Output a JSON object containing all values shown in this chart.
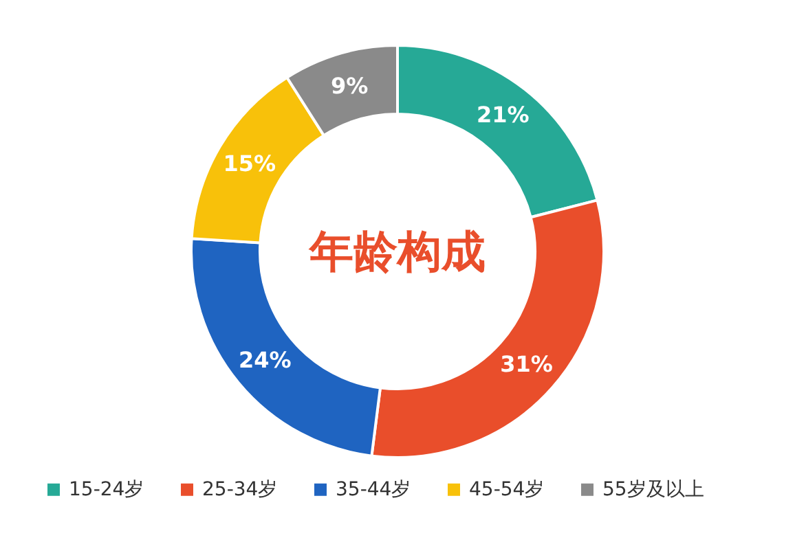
{
  "chart_data": {
    "type": "donut",
    "title": "年龄构成",
    "categories": [
      "15-24岁",
      "25-34岁",
      "35-44岁",
      "45-54岁",
      "55岁及以上"
    ],
    "values": [
      21,
      31,
      24,
      15,
      9
    ],
    "colors": [
      "#26a996",
      "#e94e2b",
      "#1f64c1",
      "#f8c10a",
      "#8a8a8a"
    ],
    "value_labels": [
      "21%",
      "31%",
      "24%",
      "15%",
      "9%"
    ],
    "legend": "bottom"
  }
}
